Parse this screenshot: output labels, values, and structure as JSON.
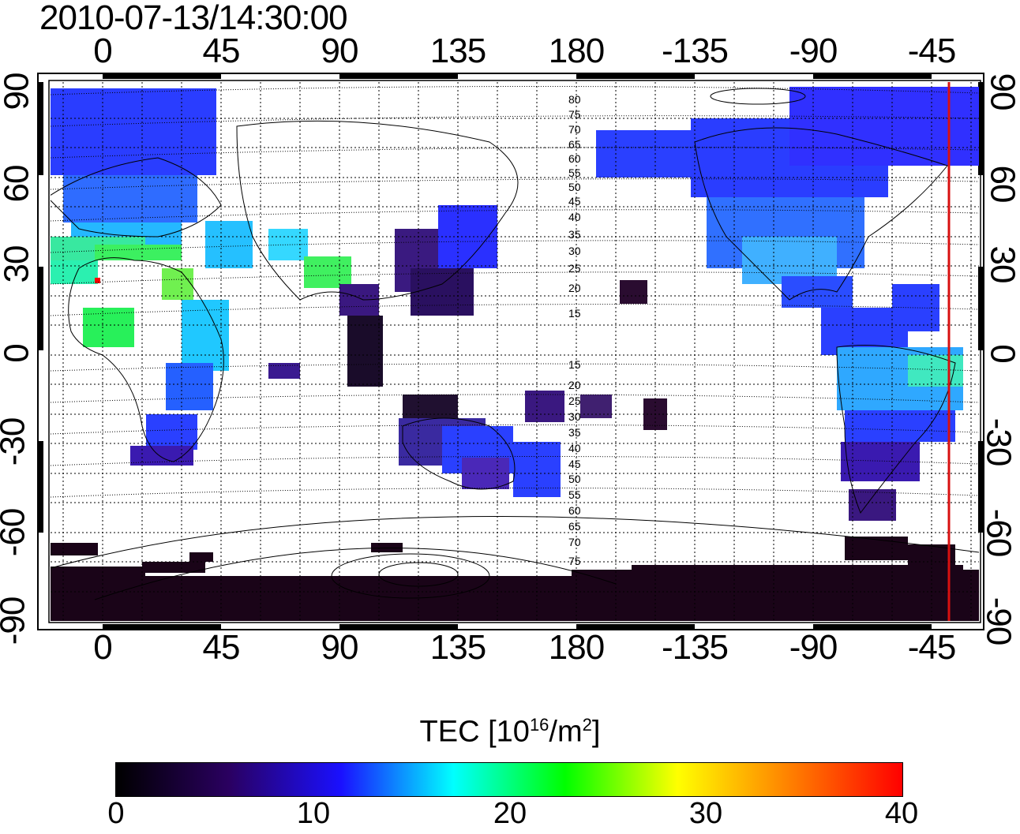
{
  "title": "2010-07-13/14:30:00",
  "map": {
    "top_lon_ticks": [
      "0",
      "45",
      "90",
      "135",
      "180",
      "-135",
      "-90",
      "-45"
    ],
    "bottom_lon_ticks": [
      "0",
      "45",
      "90",
      "135",
      "180",
      "-135",
      "-90",
      "-45"
    ],
    "left_lat_ticks": [
      "90",
      "60",
      "30",
      "0",
      "-30",
      "-60",
      "-90"
    ],
    "right_lat_ticks": [
      "90",
      "60",
      "30",
      "0",
      "-30",
      "-60",
      "-90"
    ],
    "contour_labels_north": [
      "80",
      "75",
      "70",
      "65",
      "60",
      "55",
      "50",
      "45",
      "40",
      "35",
      "30",
      "25",
      "20",
      "15"
    ],
    "contour_labels_south": [
      "15",
      "20",
      "25",
      "30",
      "35",
      "40",
      "45",
      "50",
      "55",
      "60",
      "65",
      "70",
      "75"
    ],
    "terminator_line_color": "#d81010"
  },
  "colorbar": {
    "title": "TEC  [10",
    "title_exp": "16",
    "title_unit": "/m",
    "title_unit_exp": "2",
    "title_end": "]",
    "ticks": [
      "0",
      "10",
      "20",
      "30",
      "40"
    ],
    "range": [
      0,
      40
    ],
    "stops": [
      "#000000",
      "#2a0060",
      "#1a10ff",
      "#00ffff",
      "#00ff00",
      "#ffff00",
      "#ff8000",
      "#ff0000"
    ]
  }
}
